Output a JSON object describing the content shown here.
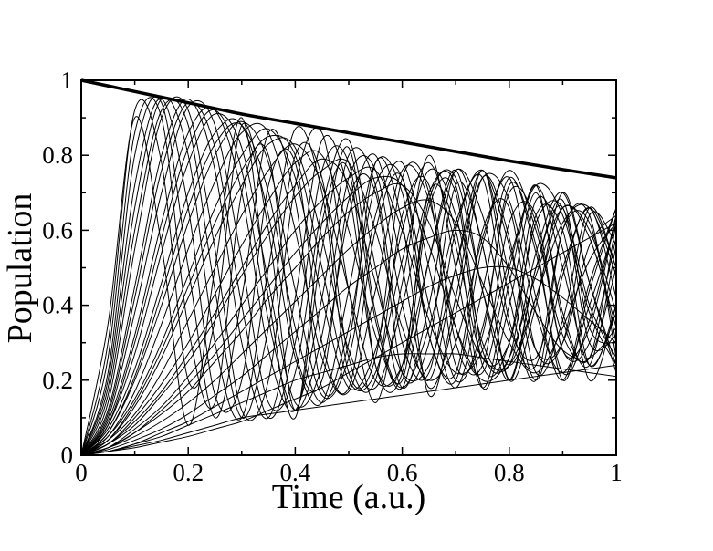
{
  "chart_data": {
    "type": "line",
    "xlabel": "Time (a.u.)",
    "ylabel": "Population",
    "xlim": [
      0,
      1
    ],
    "ylim": [
      0,
      1
    ],
    "grid": false,
    "legend": "none",
    "x_ticks": [
      "0",
      "0.2",
      "0.4",
      "0.6",
      "0.8",
      "1"
    ],
    "y_ticks": [
      "0",
      "0.2",
      "0.4",
      "0.6",
      "0.8",
      "1"
    ],
    "line_color": "#000000",
    "envelope": {
      "x": [
        0,
        0.1,
        0.2,
        0.3,
        0.4,
        0.5,
        0.6,
        0.7,
        0.8,
        0.9,
        1.0
      ],
      "y": [
        1.0,
        0.97,
        0.94,
        0.91,
        0.885,
        0.86,
        0.835,
        0.81,
        0.785,
        0.762,
        0.74
      ]
    },
    "oscillation_curves": {
      "x": [
        0,
        0.05,
        0.1,
        0.15,
        0.2,
        0.25,
        0.3,
        0.35,
        0.4,
        0.45,
        0.5,
        0.55,
        0.6,
        0.65,
        0.7,
        0.75,
        0.8,
        0.85,
        0.9,
        0.95,
        1.0
      ],
      "series": [
        {
          "y": [
            0,
            0.3,
            0.92,
            0.78,
            0.2,
            0.36,
            0.88,
            0.6,
            0.12,
            0.55,
            0.82,
            0.38,
            0.2,
            0.66,
            0.7,
            0.24,
            0.3,
            0.68,
            0.55,
            0.2,
            0.4
          ]
        },
        {
          "y": [
            0,
            0.22,
            0.8,
            0.94,
            0.5,
            0.1,
            0.42,
            0.86,
            0.68,
            0.18,
            0.3,
            0.78,
            0.62,
            0.16,
            0.42,
            0.76,
            0.42,
            0.2,
            0.6,
            0.64,
            0.26
          ]
        },
        {
          "y": [
            0,
            0.18,
            0.66,
            0.95,
            0.8,
            0.3,
            0.1,
            0.5,
            0.87,
            0.7,
            0.22,
            0.26,
            0.74,
            0.7,
            0.24,
            0.32,
            0.72,
            0.56,
            0.2,
            0.44,
            0.66
          ]
        },
        {
          "y": [
            0,
            0.14,
            0.55,
            0.9,
            0.92,
            0.55,
            0.12,
            0.2,
            0.72,
            0.86,
            0.44,
            0.14,
            0.46,
            0.8,
            0.5,
            0.18,
            0.46,
            0.72,
            0.36,
            0.26,
            0.62
          ]
        },
        {
          "y": [
            0,
            0.12,
            0.45,
            0.8,
            0.95,
            0.76,
            0.3,
            0.1,
            0.42,
            0.84,
            0.7,
            0.24,
            0.24,
            0.68,
            0.72,
            0.28,
            0.26,
            0.64,
            0.6,
            0.24,
            0.4
          ]
        },
        {
          "y": [
            0,
            0.1,
            0.38,
            0.7,
            0.93,
            0.88,
            0.52,
            0.14,
            0.22,
            0.66,
            0.84,
            0.5,
            0.18,
            0.4,
            0.76,
            0.56,
            0.2,
            0.4,
            0.7,
            0.46,
            0.22
          ]
        },
        {
          "y": [
            0,
            0.09,
            0.32,
            0.62,
            0.86,
            0.92,
            0.7,
            0.28,
            0.12,
            0.42,
            0.8,
            0.72,
            0.3,
            0.22,
            0.6,
            0.74,
            0.36,
            0.24,
            0.6,
            0.62,
            0.3
          ]
        },
        {
          "y": [
            0,
            0.08,
            0.27,
            0.54,
            0.78,
            0.91,
            0.82,
            0.46,
            0.14,
            0.24,
            0.64,
            0.8,
            0.5,
            0.18,
            0.38,
            0.74,
            0.58,
            0.22,
            0.36,
            0.66,
            0.5
          ]
        },
        {
          "y": [
            0,
            0.07,
            0.23,
            0.46,
            0.7,
            0.86,
            0.88,
            0.64,
            0.26,
            0.14,
            0.44,
            0.78,
            0.7,
            0.32,
            0.2,
            0.56,
            0.74,
            0.42,
            0.2,
            0.46,
            0.66
          ]
        },
        {
          "y": [
            0,
            0.06,
            0.2,
            0.4,
            0.62,
            0.8,
            0.89,
            0.78,
            0.44,
            0.16,
            0.26,
            0.64,
            0.78,
            0.5,
            0.2,
            0.34,
            0.7,
            0.62,
            0.28,
            0.3,
            0.58
          ]
        },
        {
          "y": [
            0,
            0.05,
            0.17,
            0.35,
            0.55,
            0.73,
            0.86,
            0.86,
            0.6,
            0.26,
            0.17,
            0.44,
            0.76,
            0.68,
            0.34,
            0.22,
            0.5,
            0.72,
            0.5,
            0.24,
            0.38
          ]
        },
        {
          "y": [
            0,
            0.05,
            0.15,
            0.3,
            0.48,
            0.66,
            0.8,
            0.87,
            0.74,
            0.42,
            0.18,
            0.28,
            0.6,
            0.78,
            0.56,
            0.26,
            0.3,
            0.62,
            0.66,
            0.4,
            0.26
          ]
        },
        {
          "y": [
            0,
            0.04,
            0.13,
            0.26,
            0.42,
            0.58,
            0.72,
            0.83,
            0.82,
            0.58,
            0.28,
            0.18,
            0.4,
            0.7,
            0.74,
            0.44,
            0.24,
            0.42,
            0.66,
            0.58,
            0.34
          ]
        },
        {
          "y": [
            0,
            0.04,
            0.11,
            0.22,
            0.36,
            0.5,
            0.64,
            0.76,
            0.83,
            0.72,
            0.44,
            0.2,
            0.24,
            0.52,
            0.76,
            0.64,
            0.34,
            0.26,
            0.5,
            0.66,
            0.5
          ]
        },
        {
          "y": [
            0,
            0.03,
            0.1,
            0.19,
            0.3,
            0.43,
            0.56,
            0.68,
            0.78,
            0.8,
            0.6,
            0.32,
            0.18,
            0.34,
            0.62,
            0.76,
            0.56,
            0.28,
            0.3,
            0.56,
            0.64
          ]
        },
        {
          "y": [
            0,
            0.03,
            0.08,
            0.16,
            0.25,
            0.36,
            0.48,
            0.59,
            0.69,
            0.76,
            0.78,
            0.6,
            0.34,
            0.2,
            0.3,
            0.58,
            0.76,
            0.6,
            0.32,
            0.26,
            0.5
          ]
        },
        {
          "y": [
            0,
            0.02,
            0.07,
            0.13,
            0.21,
            0.3,
            0.4,
            0.5,
            0.6,
            0.68,
            0.74,
            0.76,
            0.6,
            0.36,
            0.22,
            0.28,
            0.52,
            0.72,
            0.64,
            0.38,
            0.24
          ]
        },
        {
          "y": [
            0,
            0.02,
            0.06,
            0.11,
            0.17,
            0.25,
            0.33,
            0.42,
            0.5,
            0.58,
            0.65,
            0.7,
            0.72,
            0.62,
            0.42,
            0.26,
            0.24,
            0.42,
            0.62,
            0.66,
            0.48
          ]
        },
        {
          "y": [
            0,
            0.02,
            0.05,
            0.09,
            0.14,
            0.2,
            0.27,
            0.34,
            0.41,
            0.48,
            0.55,
            0.61,
            0.66,
            0.68,
            0.62,
            0.46,
            0.3,
            0.22,
            0.34,
            0.52,
            0.62
          ]
        },
        {
          "y": [
            0,
            0.015,
            0.04,
            0.07,
            0.11,
            0.16,
            0.21,
            0.27,
            0.33,
            0.39,
            0.45,
            0.5,
            0.55,
            0.58,
            0.6,
            0.58,
            0.5,
            0.38,
            0.28,
            0.26,
            0.34
          ]
        },
        {
          "y": [
            0,
            0.01,
            0.03,
            0.06,
            0.09,
            0.13,
            0.17,
            0.21,
            0.25,
            0.29,
            0.33,
            0.37,
            0.41,
            0.45,
            0.48,
            0.5,
            0.5,
            0.47,
            0.42,
            0.36,
            0.3
          ]
        },
        {
          "y": [
            0,
            0.01,
            0.03,
            0.05,
            0.08,
            0.11,
            0.14,
            0.17,
            0.2,
            0.22,
            0.24,
            0.26,
            0.27,
            0.27,
            0.27,
            0.26,
            0.25,
            0.24,
            0.23,
            0.22,
            0.21
          ]
        },
        {
          "y": [
            0,
            0.01,
            0.025,
            0.04,
            0.06,
            0.08,
            0.1,
            0.11,
            0.12,
            0.13,
            0.14,
            0.15,
            0.16,
            0.17,
            0.18,
            0.19,
            0.2,
            0.21,
            0.22,
            0.23,
            0.24
          ]
        },
        {
          "y": [
            0,
            0.01,
            0.02,
            0.035,
            0.05,
            0.07,
            0.09,
            0.12,
            0.15,
            0.18,
            0.22,
            0.26,
            0.3,
            0.34,
            0.38,
            0.42,
            0.46,
            0.5,
            0.54,
            0.58,
            0.62
          ]
        },
        {
          "y": [
            0,
            0.35,
            0.9,
            0.56,
            0.08,
            0.5,
            0.9,
            0.42,
            0.1,
            0.62,
            0.76,
            0.24,
            0.22,
            0.7,
            0.6,
            0.18,
            0.4,
            0.7,
            0.38,
            0.24,
            0.56
          ]
        },
        {
          "y": [
            0,
            0.26,
            0.86,
            0.9,
            0.34,
            0.14,
            0.7,
            0.8,
            0.28,
            0.2,
            0.68,
            0.7,
            0.22,
            0.3,
            0.72,
            0.56,
            0.2,
            0.5,
            0.66,
            0.3,
            0.32
          ]
        },
        {
          "y": [
            0,
            0.2,
            0.72,
            0.95,
            0.66,
            0.16,
            0.2,
            0.72,
            0.78,
            0.3,
            0.18,
            0.6,
            0.74,
            0.32,
            0.22,
            0.6,
            0.66,
            0.28,
            0.3,
            0.64,
            0.56
          ]
        },
        {
          "y": [
            0,
            0.16,
            0.6,
            0.92,
            0.88,
            0.44,
            0.1,
            0.34,
            0.8,
            0.74,
            0.26,
            0.2,
            0.64,
            0.72,
            0.3,
            0.24,
            0.62,
            0.64,
            0.28,
            0.34,
            0.64
          ]
        },
        {
          "y": [
            0,
            0.11,
            0.42,
            0.76,
            0.94,
            0.82,
            0.4,
            0.1,
            0.3,
            0.76,
            0.78,
            0.36,
            0.18,
            0.52,
            0.76,
            0.44,
            0.2,
            0.5,
            0.68,
            0.34,
            0.3
          ]
        },
        {
          "y": [
            0,
            0.08,
            0.3,
            0.58,
            0.82,
            0.92,
            0.76,
            0.36,
            0.12,
            0.32,
            0.74,
            0.76,
            0.4,
            0.2,
            0.5,
            0.76,
            0.48,
            0.2,
            0.48,
            0.66,
            0.42
          ]
        },
        {
          "y": [
            0,
            0.06,
            0.21,
            0.43,
            0.66,
            0.83,
            0.88,
            0.7,
            0.34,
            0.14,
            0.34,
            0.72,
            0.74,
            0.4,
            0.18,
            0.44,
            0.74,
            0.54,
            0.22,
            0.36,
            0.64
          ]
        },
        {
          "y": [
            0,
            0.04,
            0.14,
            0.28,
            0.45,
            0.62,
            0.76,
            0.85,
            0.8,
            0.5,
            0.2,
            0.22,
            0.52,
            0.76,
            0.64,
            0.3,
            0.24,
            0.54,
            0.7,
            0.46,
            0.24
          ]
        },
        {
          "y": [
            0,
            0.03,
            0.09,
            0.17,
            0.27,
            0.38,
            0.5,
            0.62,
            0.72,
            0.79,
            0.72,
            0.46,
            0.22,
            0.24,
            0.5,
            0.74,
            0.68,
            0.38,
            0.22,
            0.4,
            0.62
          ]
        },
        {
          "y": [
            0,
            0.02,
            0.06,
            0.12,
            0.19,
            0.27,
            0.36,
            0.45,
            0.54,
            0.62,
            0.69,
            0.74,
            0.72,
            0.56,
            0.34,
            0.2,
            0.26,
            0.48,
            0.66,
            0.6,
            0.38
          ]
        }
      ]
    }
  }
}
